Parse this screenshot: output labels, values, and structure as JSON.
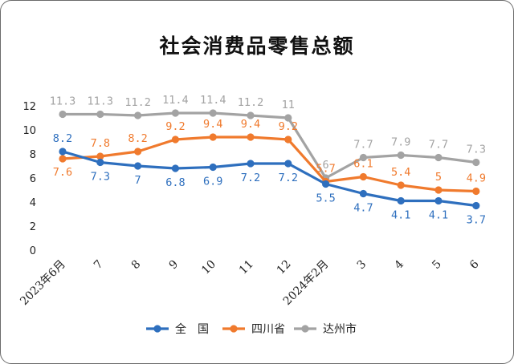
{
  "chart_data": {
    "type": "line",
    "title": "社会消费品零售总额",
    "categories": [
      "2023年6月",
      "7",
      "8",
      "9",
      "10",
      "11",
      "12",
      "2024年2月",
      "3",
      "4",
      "5",
      "6"
    ],
    "ylim": [
      0,
      12
    ],
    "yticks": [
      "0",
      "2",
      "4",
      "6",
      "8",
      "10",
      "12"
    ],
    "grid": false,
    "legend_position": "bottom",
    "series": [
      {
        "name": "全　国",
        "color": "#2e6fbe",
        "values": [
          8.2,
          7.3,
          7.0,
          6.8,
          6.9,
          7.2,
          7.2,
          5.5,
          4.7,
          4.1,
          4.1,
          3.7
        ],
        "labels": [
          "8.2",
          "7.3",
          "7",
          "6.8",
          "6.9",
          "7.2",
          "7.2",
          "5.5",
          "4.7",
          "4.1",
          "4.1",
          "3.7"
        ]
      },
      {
        "name": "四川省",
        "color": "#f07a2d",
        "values": [
          7.6,
          7.8,
          8.2,
          9.2,
          9.4,
          9.4,
          9.2,
          5.7,
          6.1,
          5.4,
          5.0,
          4.9
        ],
        "labels": [
          "7.6",
          "7.8",
          "8.2",
          "9.2",
          "9.4",
          "9.4",
          "9.2",
          "5.7",
          "6.1",
          "5.4",
          "5",
          "4.9"
        ]
      },
      {
        "name": "达州市",
        "color": "#a3a3a3",
        "values": [
          11.3,
          11.3,
          11.2,
          11.4,
          11.4,
          11.2,
          11.0,
          6.0,
          7.7,
          7.9,
          7.7,
          7.3
        ],
        "labels": [
          "11.3",
          "11.3",
          "11.2",
          "11.4",
          "11.4",
          "11.2",
          "11",
          "6",
          "7.7",
          "7.9",
          "7.7",
          "7.3"
        ]
      }
    ]
  }
}
